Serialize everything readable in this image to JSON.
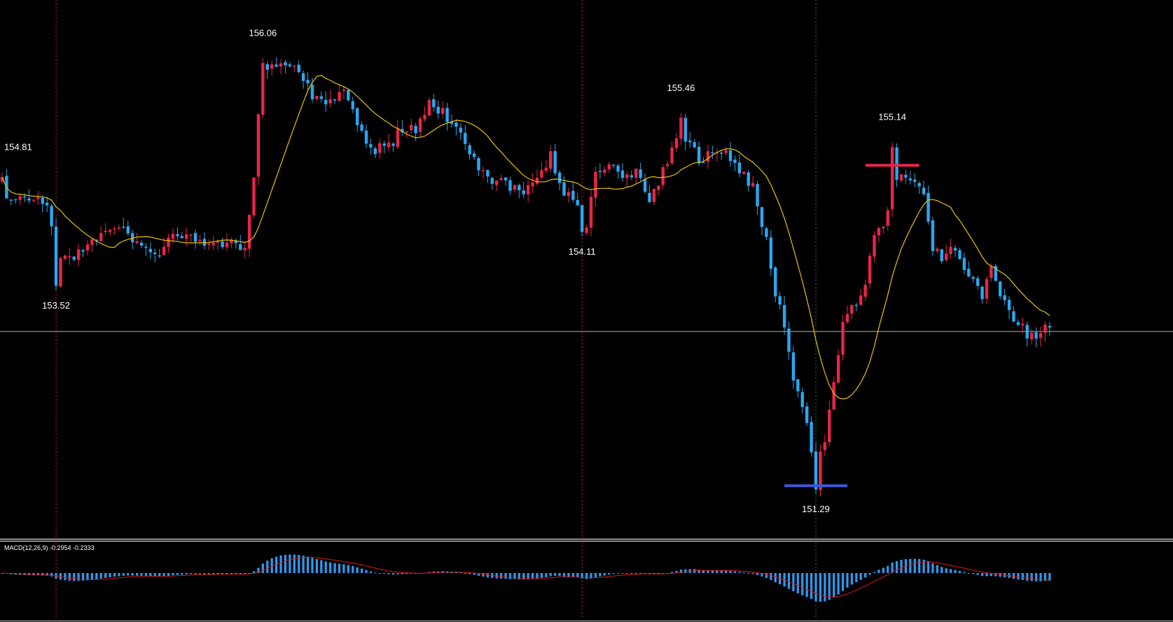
{
  "chart_data": [
    {
      "type": "candlestick",
      "panel": "price",
      "title": "",
      "colors": {
        "background": "#000000",
        "bull": "#e8254a",
        "bear": "#29a8f0",
        "ma_line": "#e8c400",
        "crosshair": "#b0b0b0",
        "vline_red": "#d81a1a",
        "vline_green": "#1a8a1a",
        "high_marker": "#e8254a",
        "low_marker": "#3b56d9",
        "label": "#ffffff"
      },
      "ylim": [
        150.8,
        156.7
      ],
      "crosshair_price": 153.07,
      "annotations": [
        {
          "text": "154.81",
          "value": 154.81,
          "index": 0,
          "kind": "high"
        },
        {
          "text": "153.52",
          "value": 153.52,
          "index": 12,
          "kind": "low"
        },
        {
          "text": "156.06",
          "value": 156.06,
          "index": 58,
          "kind": "high"
        },
        {
          "text": "155.46",
          "value": 155.46,
          "index": 151,
          "kind": "high"
        },
        {
          "text": "154.11",
          "value": 154.11,
          "index": 129,
          "kind": "low"
        },
        {
          "text": "155.14",
          "value": 155.14,
          "index": 198,
          "kind": "high"
        },
        {
          "text": "151.29",
          "value": 151.29,
          "index": 181,
          "kind": "low"
        }
      ],
      "marker_lines": [
        {
          "kind": "high",
          "value": 154.89,
          "from_index": 192,
          "to_index": 204
        },
        {
          "kind": "low",
          "value": 151.38,
          "from_index": 174,
          "to_index": 188
        }
      ],
      "vertical_lines": [
        {
          "index": 12,
          "style": "red-dotted"
        },
        {
          "index": 129,
          "style": "red-dotted"
        },
        {
          "index": 181,
          "style": "green-dotted"
        }
      ],
      "close_path": [
        [
          0,
          154.45
        ],
        [
          5,
          154.55
        ],
        [
          10,
          154.5
        ],
        [
          12,
          153.95
        ],
        [
          16,
          153.85
        ],
        [
          20,
          154.1
        ],
        [
          26,
          154.2
        ],
        [
          30,
          154.05
        ],
        [
          35,
          153.95
        ],
        [
          40,
          154.15
        ],
        [
          45,
          154.0
        ],
        [
          50,
          154.05
        ],
        [
          54,
          153.92
        ],
        [
          56,
          154.7
        ],
        [
          57,
          155.5
        ],
        [
          58,
          156.0
        ],
        [
          62,
          156.02
        ],
        [
          66,
          155.92
        ],
        [
          69,
          155.68
        ],
        [
          72,
          155.55
        ],
        [
          75,
          155.72
        ],
        [
          78,
          155.55
        ],
        [
          80,
          155.22
        ],
        [
          83,
          155.05
        ],
        [
          86,
          155.1
        ],
        [
          89,
          155.3
        ],
        [
          92,
          155.25
        ],
        [
          95,
          155.58
        ],
        [
          98,
          155.45
        ],
        [
          100,
          155.4
        ],
        [
          103,
          155.15
        ],
        [
          106,
          154.85
        ],
        [
          109,
          154.75
        ],
        [
          112,
          154.7
        ],
        [
          116,
          154.55
        ],
        [
          119,
          154.75
        ],
        [
          122,
          155.0
        ],
        [
          125,
          154.6
        ],
        [
          128,
          154.45
        ],
        [
          130,
          154.2
        ],
        [
          132,
          154.85
        ],
        [
          135,
          154.9
        ],
        [
          138,
          154.7
        ],
        [
          141,
          154.8
        ],
        [
          144,
          154.55
        ],
        [
          147,
          154.8
        ],
        [
          150,
          155.15
        ],
        [
          152,
          155.2
        ],
        [
          155,
          154.95
        ],
        [
          158,
          155.0
        ],
        [
          161,
          155.02
        ],
        [
          164,
          154.85
        ],
        [
          167,
          154.65
        ],
        [
          170,
          154.1
        ],
        [
          172,
          153.5
        ],
        [
          174,
          153.1
        ],
        [
          176,
          152.6
        ],
        [
          178,
          152.2
        ],
        [
          180,
          151.8
        ],
        [
          181,
          151.6
        ],
        [
          183,
          151.8
        ],
        [
          185,
          152.5
        ],
        [
          187,
          153.2
        ],
        [
          190,
          153.35
        ],
        [
          192,
          153.6
        ],
        [
          194,
          154.1
        ],
        [
          197,
          154.35
        ],
        [
          199,
          154.75
        ],
        [
          201,
          154.8
        ],
        [
          203,
          154.72
        ],
        [
          205,
          154.55
        ],
        [
          207,
          154.0
        ],
        [
          209,
          153.85
        ],
        [
          212,
          154.0
        ],
        [
          214,
          153.75
        ],
        [
          216,
          153.6
        ],
        [
          218,
          153.45
        ],
        [
          220,
          153.75
        ],
        [
          222,
          153.5
        ],
        [
          224,
          153.35
        ],
        [
          226,
          153.15
        ],
        [
          228,
          153.05
        ],
        [
          230,
          152.95
        ],
        [
          232,
          153.1
        ]
      ],
      "ma_period": 14
    },
    {
      "type": "macd",
      "panel": "indicator",
      "title": "MACD(12,26,9) -0.2954 -0.2333",
      "params": [
        12,
        26,
        9
      ],
      "macd_value": -0.2954,
      "signal_value": -0.2333,
      "colors": {
        "histogram": "#2e9bf0",
        "signal": "#e01818"
      }
    }
  ]
}
